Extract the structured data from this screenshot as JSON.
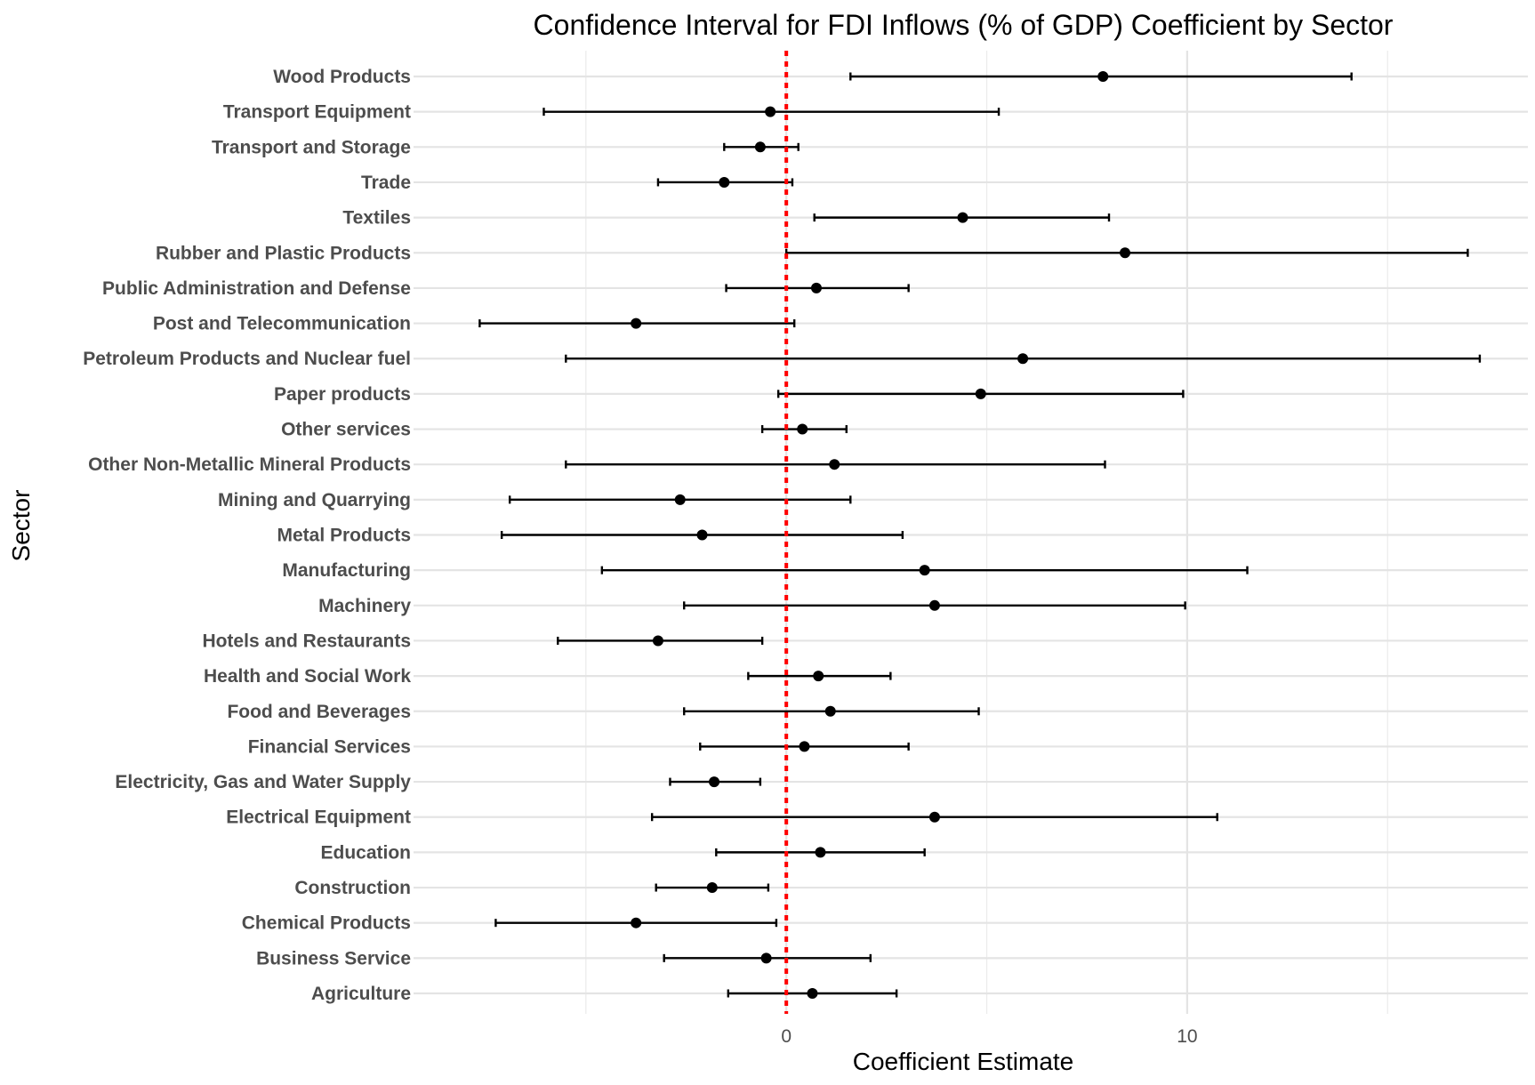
{
  "chart_data": {
    "type": "scatter",
    "subtype": "point-range / confidence interval",
    "title": "Confidence Interval for FDI Inflows (% of GDP) Coefficient by Sector",
    "xlabel": "Coefficient Estimate",
    "ylabel": "Sector",
    "xlim": [
      -9.3,
      18.5
    ],
    "x_ticks": [
      0,
      10
    ],
    "x_minor_gridlines": [
      -5,
      5,
      15
    ],
    "reference_line": {
      "x": 0,
      "color": "#ff0000",
      "style": "dotted"
    },
    "grid": true,
    "legend": "none",
    "point_color": "#000000",
    "categories": [
      "Agriculture",
      "Business Service",
      "Chemical Products",
      "Construction",
      "Education",
      "Electrical Equipment",
      "Electricity, Gas and Water Supply",
      "Financial Services",
      "Food and Beverages",
      "Health and Social Work",
      "Hotels and Restaurants",
      "Machinery",
      "Manufacturing",
      "Metal Products",
      "Mining and Quarrying",
      "Other Non-Metallic Mineral Products",
      "Other services",
      "Paper products",
      "Petroleum Products and Nuclear fuel",
      "Post and Telecommunication",
      "Public Administration and Defense",
      "Rubber and Plastic Products",
      "Textiles",
      "Trade",
      "Transport and Storage",
      "Transport Equipment",
      "Wood Products"
    ],
    "estimate": [
      0.65,
      -0.5,
      -3.75,
      -1.85,
      0.85,
      3.7,
      -1.8,
      0.45,
      1.1,
      0.8,
      -3.2,
      3.7,
      3.45,
      -2.1,
      -2.65,
      1.2,
      0.4,
      4.85,
      5.9,
      -3.75,
      0.75,
      8.45,
      4.4,
      -1.55,
      -0.65,
      -0.4,
      7.9
    ],
    "lower": [
      -1.45,
      -3.05,
      -7.25,
      -3.25,
      -1.75,
      -3.35,
      -2.9,
      -2.15,
      -2.55,
      -0.95,
      -5.7,
      -2.55,
      -4.6,
      -7.1,
      -6.9,
      -5.5,
      -0.6,
      -0.2,
      -5.5,
      -7.65,
      -1.5,
      0.0,
      0.7,
      -3.2,
      -1.55,
      -6.05,
      1.6
    ],
    "upper": [
      2.75,
      2.1,
      -0.25,
      -0.45,
      3.45,
      10.75,
      -0.65,
      3.05,
      4.8,
      2.6,
      -0.6,
      9.95,
      11.5,
      2.9,
      1.6,
      7.95,
      1.5,
      9.9,
      17.3,
      0.2,
      3.05,
      17.0,
      8.05,
      0.15,
      0.3,
      5.3,
      14.1
    ]
  }
}
